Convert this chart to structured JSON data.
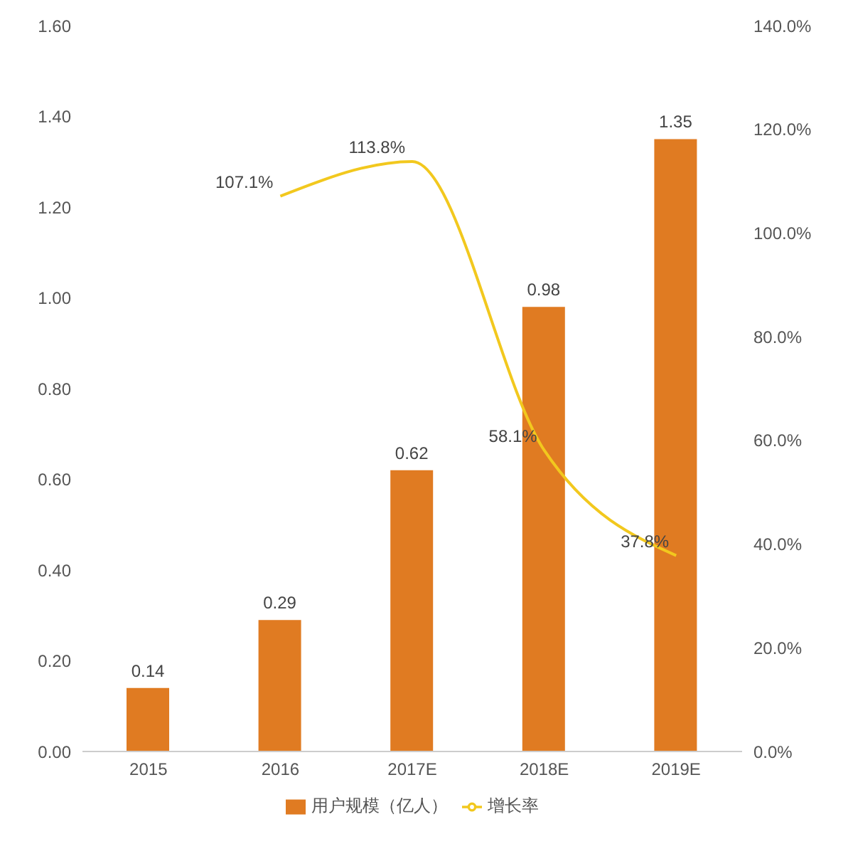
{
  "chart_data": {
    "type": "bar",
    "categories": [
      "2015",
      "2016",
      "2017E",
      "2018E",
      "2019E"
    ],
    "series": [
      {
        "name": "用户规模（亿人）",
        "color": "#e07b22",
        "values": [
          0.14,
          0.29,
          0.62,
          0.98,
          1.35
        ],
        "value_labels": [
          "0.14",
          "0.29",
          "0.62",
          "0.98",
          "1.35"
        ]
      },
      {
        "name": "增长率",
        "type": "line",
        "axis": "y2",
        "color": "#f2c81e",
        "values": [
          null,
          107.1,
          113.8,
          58.1,
          37.8
        ],
        "value_labels": [
          null,
          "107.1%",
          "113.8%",
          "58.1%",
          "37.8%"
        ]
      }
    ],
    "ylim": [
      0,
      1.6
    ],
    "yticks": [
      {
        "value": 0,
        "label": "0.00"
      },
      {
        "value": 0.2,
        "label": "0.20"
      },
      {
        "value": 0.4,
        "label": "0.40"
      },
      {
        "value": 0.6,
        "label": "0.60"
      },
      {
        "value": 0.8,
        "label": "0.80"
      },
      {
        "value": 1,
        "label": "1.00"
      },
      {
        "value": 1.2,
        "label": "1.20"
      },
      {
        "value": 1.4,
        "label": "1.40"
      },
      {
        "value": 1.6,
        "label": "1.60"
      }
    ],
    "y2lim": [
      0,
      140
    ],
    "y2ticks": [
      {
        "value": 0,
        "label": "0.0%"
      },
      {
        "value": 20,
        "label": "20.0%"
      },
      {
        "value": 40,
        "label": "40.0%"
      },
      {
        "value": 60,
        "label": "60.0%"
      },
      {
        "value": 80,
        "label": "80.0%"
      },
      {
        "value": 100,
        "label": "100.0%"
      },
      {
        "value": 120,
        "label": "120.0%"
      },
      {
        "value": 140,
        "label": "140.0%"
      }
    ],
    "legend": "bottom"
  }
}
